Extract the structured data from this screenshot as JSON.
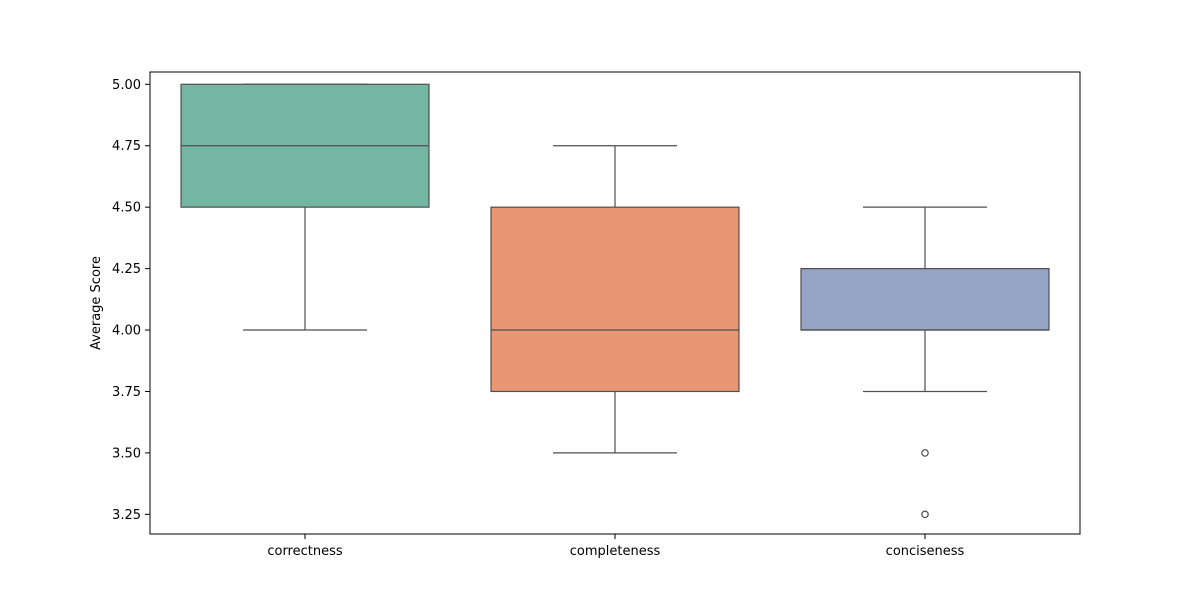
{
  "chart_data": {
    "type": "box",
    "title": "",
    "xlabel": "",
    "ylabel": "Average Score",
    "ylim": [
      3.17,
      5.05
    ],
    "yticks": [
      "3.25",
      "3.50",
      "3.75",
      "4.00",
      "4.25",
      "4.50",
      "4.75",
      "5.00"
    ],
    "grid": false,
    "legend": "none",
    "categories": [
      "correctness",
      "completeness",
      "conciseness"
    ],
    "boxes": [
      {
        "category": "correctness",
        "whisker_low": 4.0,
        "q1": 4.5,
        "median": 4.75,
        "q3": 5.0,
        "whisker_high": 5.0,
        "outliers": [],
        "color": "#73b6a1"
      },
      {
        "category": "completeness",
        "whisker_low": 3.5,
        "q1": 3.75,
        "median": 4.0,
        "q3": 4.5,
        "whisker_high": 4.75,
        "outliers": [],
        "color": "#e89674"
      },
      {
        "category": "conciseness",
        "whisker_low": 3.75,
        "q1": 4.0,
        "median": 4.0,
        "q3": 4.25,
        "whisker_high": 4.5,
        "outliers": [
          3.5,
          3.25
        ],
        "color": "#95a3c4"
      }
    ],
    "line_color": "#4f4f4f",
    "frame_color": "#000000"
  }
}
